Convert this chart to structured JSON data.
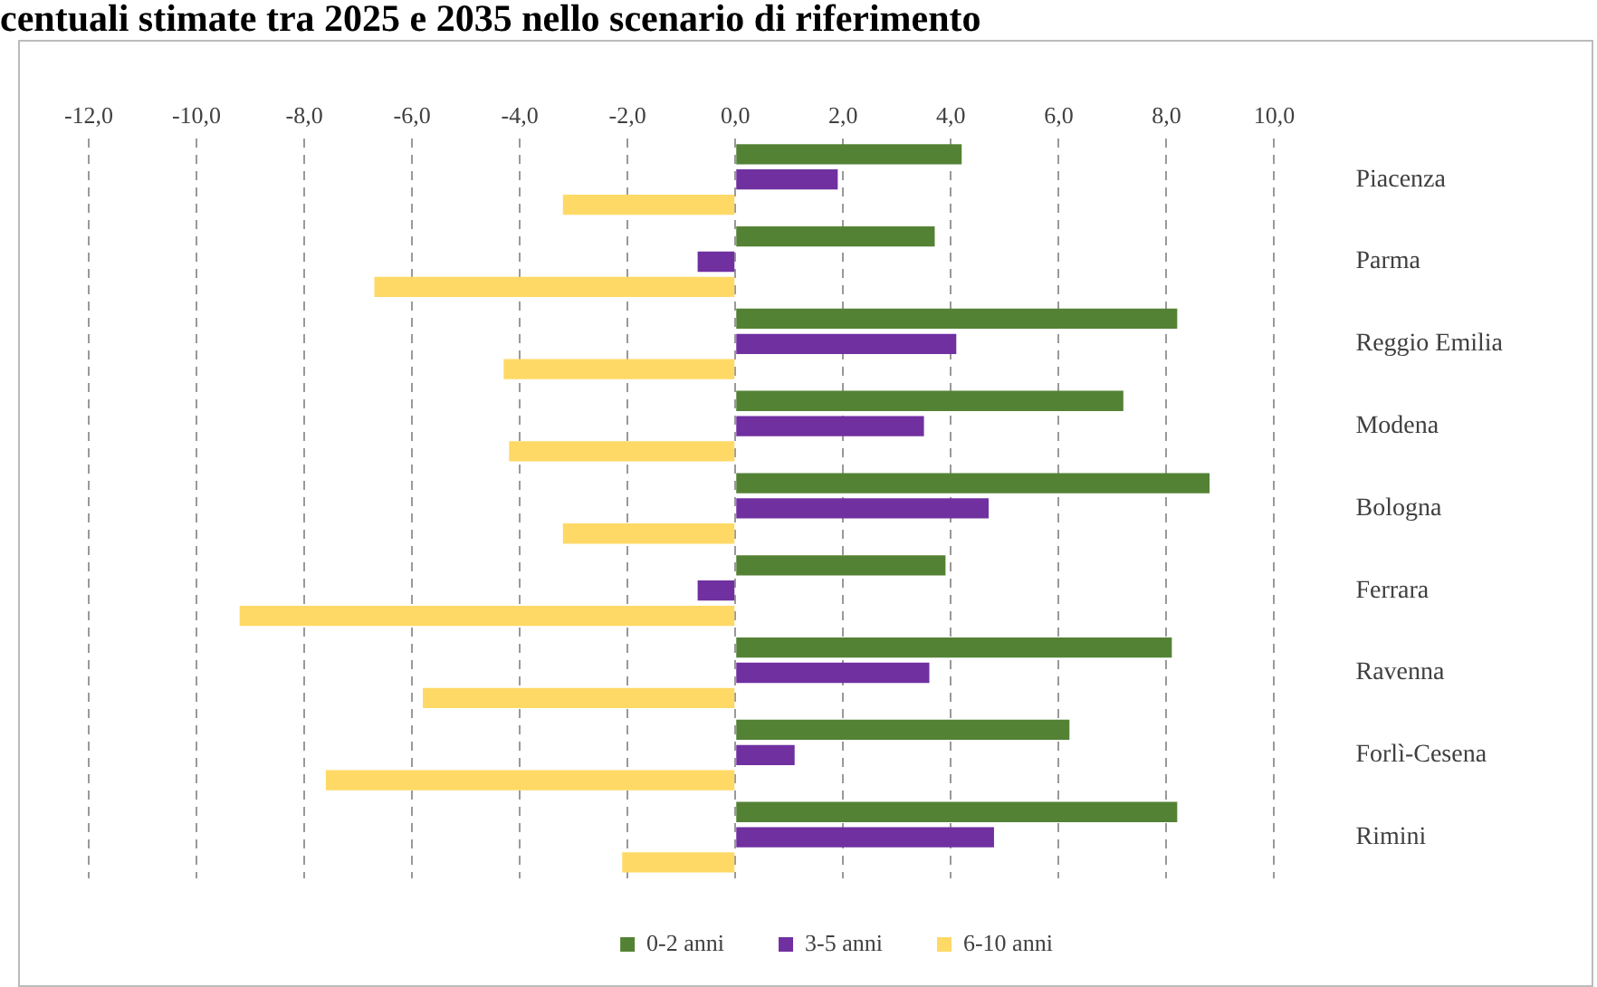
{
  "chart_data": {
    "type": "bar",
    "orientation": "horizontal",
    "title": "centuali stimate tra 2025 e 2035 nello scenario di riferimento",
    "categories": [
      "Piacenza",
      "Parma",
      "Reggio Emilia",
      "Modena",
      "Bologna",
      "Ferrara",
      "Ravenna",
      "Forlì-Cesena",
      "Rimini"
    ],
    "series": [
      {
        "name": "0-2 anni",
        "color": "#548235",
        "values": [
          4.2,
          3.7,
          8.2,
          7.2,
          8.8,
          3.9,
          8.1,
          6.2,
          8.2
        ]
      },
      {
        "name": "3-5 anni",
        "color": "#7030a0",
        "values": [
          1.9,
          -0.7,
          4.1,
          3.5,
          4.7,
          -0.7,
          3.6,
          1.1,
          4.8
        ]
      },
      {
        "name": "6-10 anni",
        "color": "#ffd966",
        "values": [
          -3.2,
          -6.7,
          -4.3,
          -4.2,
          -3.2,
          -9.2,
          -5.8,
          -7.6,
          -2.1
        ]
      }
    ],
    "xlim": [
      -12,
      10
    ],
    "xticks": [
      {
        "value": -12,
        "label": "-12,0"
      },
      {
        "value": -10,
        "label": "-10,0"
      },
      {
        "value": -8,
        "label": "-8,0"
      },
      {
        "value": -6,
        "label": "-6,0"
      },
      {
        "value": -4,
        "label": "-4,0"
      },
      {
        "value": -2,
        "label": "-2,0"
      },
      {
        "value": 0,
        "label": "0,0"
      },
      {
        "value": 2,
        "label": "2,0"
      },
      {
        "value": 4,
        "label": "4,0"
      },
      {
        "value": 6,
        "label": "6,0"
      },
      {
        "value": 8,
        "label": "8,0"
      },
      {
        "value": 10,
        "label": "10,0"
      }
    ],
    "grid": "x",
    "legend": "bottom"
  }
}
